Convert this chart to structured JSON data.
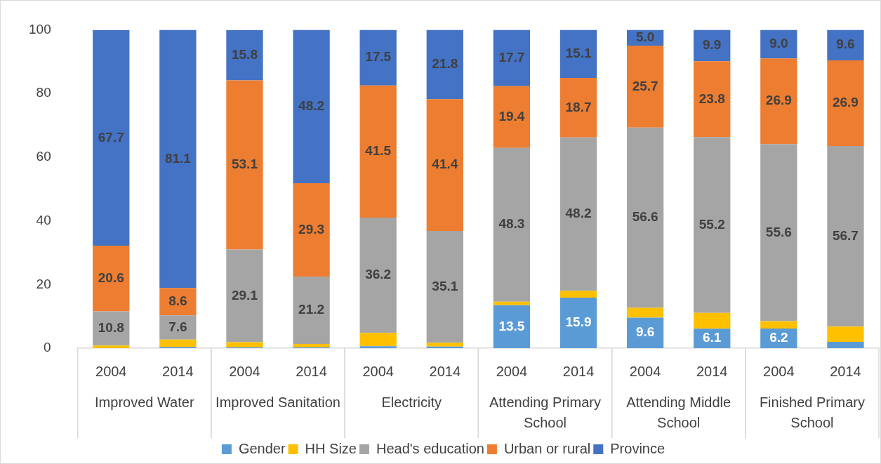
{
  "chart_data": {
    "type": "bar",
    "stacked": true,
    "categories": [
      "2004",
      "2014",
      "2004",
      "2014",
      "2004",
      "2014",
      "2004",
      "2014",
      "2004",
      "2014",
      "2004",
      "2014"
    ],
    "annotations": [
      "Improved Water",
      "Improved Sanitation",
      "Electricity",
      "Attending Primary School",
      "Attending Middle School",
      "Finished Primary School"
    ],
    "ylim": [
      0,
      100
    ],
    "yticks": [
      0,
      20,
      40,
      60,
      80,
      100
    ],
    "legend": "bottom",
    "series": [
      {
        "name": "Gender",
        "color": "#5b9bd5",
        "values": [
          null,
          0.4,
          0.3,
          0.3,
          0.6,
          0.5,
          13.5,
          15.9,
          9.6,
          6.1,
          6.2,
          2.0
        ],
        "value_labels": [
          null,
          null,
          null,
          null,
          null,
          null,
          "13.5",
          "15.9",
          "9.6",
          "6.1",
          "6.2",
          null
        ]
      },
      {
        "name": "HH Size",
        "color": "#ffc000",
        "values": [
          0.8,
          2.3,
          1.6,
          1.0,
          4.2,
          1.2,
          1.1,
          2.1,
          3.1,
          5.0,
          2.3,
          4.8
        ],
        "value_labels": [
          null,
          null,
          null,
          null,
          null,
          null,
          null,
          null,
          null,
          null,
          null,
          null
        ]
      },
      {
        "name": "Head's education",
        "color": "#a5a5a5",
        "values": [
          10.8,
          7.6,
          29.1,
          21.2,
          36.2,
          35.1,
          48.3,
          48.2,
          56.6,
          55.2,
          55.6,
          56.7
        ],
        "value_labels": [
          "10.8",
          "7.6",
          "29.1",
          "21.2",
          "36.2",
          "35.1",
          "48.3",
          "48.2",
          "56.6",
          "55.2",
          "55.6",
          "56.7"
        ]
      },
      {
        "name": "Urban or rural",
        "color": "#ed7d31",
        "values": [
          20.6,
          8.6,
          53.1,
          29.3,
          41.5,
          41.4,
          19.4,
          18.7,
          25.7,
          23.8,
          26.9,
          26.9
        ],
        "value_labels": [
          "20.6",
          "8.6",
          "53.1",
          "29.3",
          "41.5",
          "41.4",
          "19.4",
          "18.7",
          "25.7",
          "23.8",
          "26.9",
          "26.9"
        ]
      },
      {
        "name": "Province",
        "color": "#4472c4",
        "values": [
          67.7,
          81.1,
          15.8,
          48.2,
          17.5,
          21.8,
          17.7,
          15.1,
          5.0,
          9.9,
          9.0,
          9.6
        ],
        "value_labels": [
          "67.7",
          "81.1",
          "15.8",
          "48.2",
          "17.5",
          "21.8",
          "17.7",
          "15.1",
          "5.0",
          "9.9",
          "9.0",
          "9.6"
        ]
      }
    ]
  }
}
